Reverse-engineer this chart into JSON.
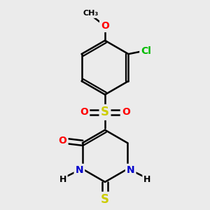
{
  "background_color": "#ebebeb",
  "atom_colors": {
    "C": "#000000",
    "N": "#0000cc",
    "O": "#ff0000",
    "S": "#cccc00",
    "Cl": "#00bb00",
    "H": "#000000"
  },
  "bond_color": "#000000",
  "bond_width": 1.8,
  "font_size": 10,
  "fig_size": [
    3.0,
    3.0
  ],
  "dpi": 100
}
